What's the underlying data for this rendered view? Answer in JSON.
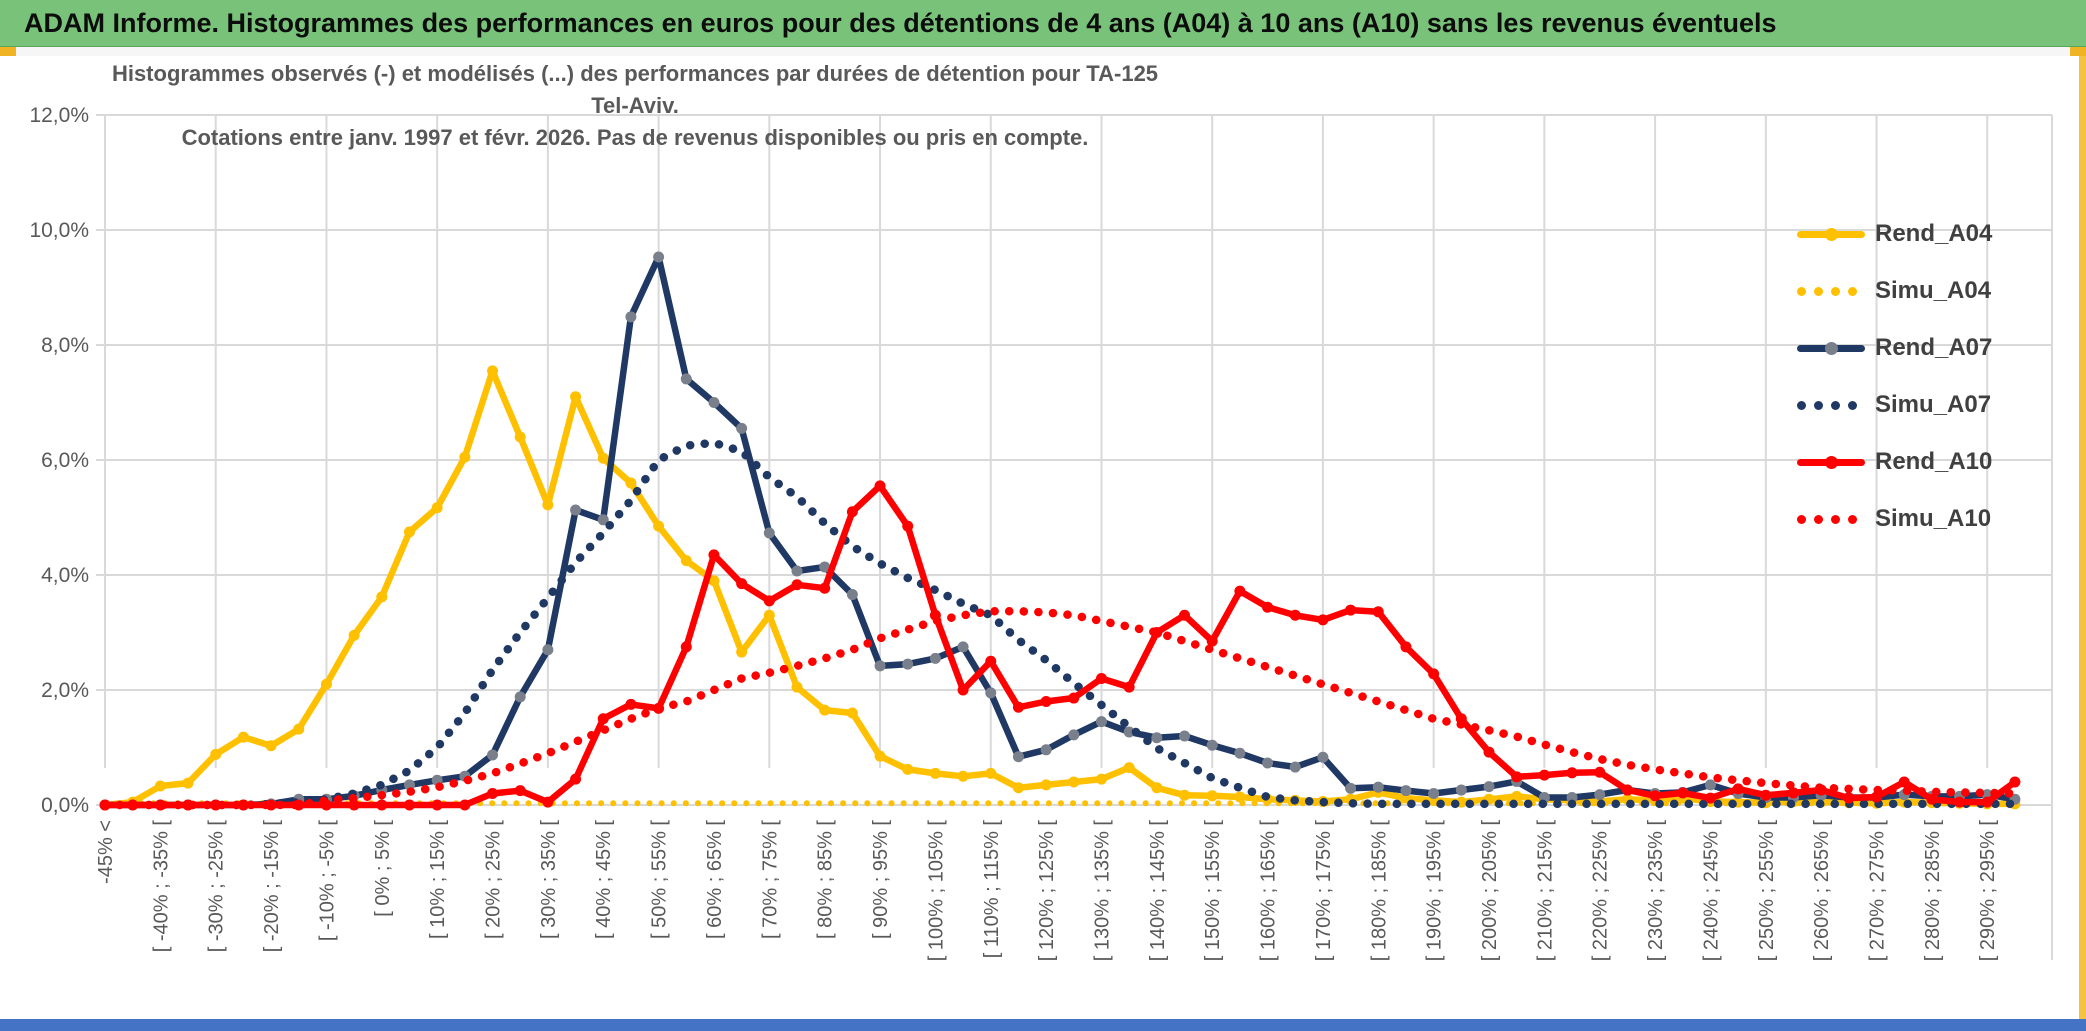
{
  "window": {
    "title": "ADAM Informe. Histogrammes des performances en euros pour des détentions de 4 ans (A04) à 10 ans (A10) sans les revenus éventuels"
  },
  "chart": {
    "subtitle_line1": "Histogrammes observés (-) et modélisés (...) des performances par durées de détention pour TA-125 Tel-Aviv.",
    "subtitle_line2": "Cotations entre janv. 1997 et févr. 2026. Pas de revenus disponibles ou pris en compte.",
    "y_ticks": [
      "12,0%",
      "10,0%",
      "8,0%",
      "6,0%",
      "4,0%",
      "2,0%",
      "0,0%"
    ],
    "colors": {
      "gold": "#FFC000",
      "navy": "#1F3864",
      "red": "#FF0000",
      "navy_marker": "#79808C",
      "grid": "#D9D9D9",
      "axis_text": "#595959",
      "title_bg": "#79C279",
      "side_strip": "#F5C242",
      "bottom_bar": "#4472C4"
    },
    "legend": [
      {
        "label": "Rend_A04",
        "color": "#FFC000",
        "marker": "#FFC000",
        "style": "solid"
      },
      {
        "label": "Simu_A04",
        "color": "#FFC000",
        "marker": "#FFC000",
        "style": "dotted"
      },
      {
        "label": "Rend_A07",
        "color": "#1F3864",
        "marker": "#79808C",
        "style": "solid"
      },
      {
        "label": "Simu_A07",
        "color": "#1F3864",
        "marker": "#1F3864",
        "style": "dotted"
      },
      {
        "label": "Rend_A10",
        "color": "#FF0000",
        "marker": "#FF0000",
        "style": "solid"
      },
      {
        "label": "Simu_A10",
        "color": "#FF0000",
        "marker": "#FF0000",
        "style": "dotted"
      }
    ]
  },
  "chart_data": {
    "type": "line",
    "title": "Histogrammes observés (-) et modélisés (...) des performances par durées de détention pour TA-125 Tel-Aviv. Cotations entre janv. 1997 et févr. 2026. Pas de revenus disponibles ou pris en compte.",
    "xlabel": "",
    "ylabel": "",
    "units": "%",
    "decimal_style": "comma",
    "ylim": [
      0,
      12
    ],
    "y_tick_step": 2,
    "grid": true,
    "legend_position": "right",
    "x_labels_shown_every": 2,
    "categories": [
      "-45% <",
      "[ -45% ; -40% [",
      "[ -40% ; -35% [",
      "[ -35% ; -30% [",
      "[ -30% ; -25% [",
      "[ -25% ; -20% [",
      "[ -20% ; -15% [",
      "[ -15% ; -10% [",
      "[ -10% ; -5% [",
      "[ -5% ; 0% [",
      "[ 0% ; 5% [",
      "[ 5% ; 10% [",
      "[ 10% ; 15% [",
      "[ 15% ; 20% [",
      "[ 20% ; 25% [",
      "[ 25% ; 30% [",
      "[ 30% ; 35% [",
      "[ 35% ; 40% [",
      "[ 40% ; 45% [",
      "[ 45% ; 50% [",
      "[ 50% ; 55% [",
      "[ 55% ; 60% [",
      "[ 60% ; 65% [",
      "[ 65% ; 70% [",
      "[ 70% ; 75% [",
      "[ 75% ; 80% [",
      "[ 80% ; 85% [",
      "[ 85% ; 90% [",
      "[ 90% ; 95% [",
      "[ 95% ; 100% [",
      "[ 100% ; 105% [",
      "[ 105% ; 110% [",
      "[ 110% ; 115% [",
      "[ 115% ; 120% [",
      "[ 120% ; 125% [",
      "[ 125% ; 130% [",
      "[ 130% ; 135% [",
      "[ 135% ; 140% [",
      "[ 140% ; 145% [",
      "[ 145% ; 150% [",
      "[ 150% ; 155% [",
      "[ 155% ; 160% [",
      "[ 160% ; 165% [",
      "[ 165% ; 170% [",
      "[ 170% ; 175% [",
      "[ 175% ; 180% [",
      "[ 180% ; 185% [",
      "[ 185% ; 190% [",
      "[ 190% ; 195% [",
      "[ 195% ; 200% [",
      "[ 200% ; 205% [",
      "[ 205% ; 210% [",
      "[ 210% ; 215% [",
      "[ 215% ; 220% [",
      "[ 220% ; 225% [",
      "[ 225% ; 230% [",
      "[ 230% ; 235% [",
      "[ 235% ; 240% [",
      "[ 240% ; 245% [",
      "[ 245% ; 250% [",
      "[ 250% ; 255% [",
      "[ 255% ; 260% [",
      "[ 260% ; 265% [",
      "[ 265% ; 270% [",
      "[ 270% ; 275% [",
      "[ 275% ; 280% [",
      "[ 280% ; 285% [",
      "[ 285% ; 290% [",
      "[ 290% ; 295% [",
      "[ 295% ; 300% ["
    ],
    "series": [
      {
        "name": "Rend_A04",
        "style": "solid",
        "color": "#FFC000",
        "marker_color": "#FFC000",
        "values": [
          0,
          0.05,
          0.33,
          0.38,
          0.88,
          1.18,
          1.03,
          1.32,
          2.1,
          2.95,
          3.62,
          4.75,
          5.17,
          6.05,
          7.55,
          6.4,
          5.22,
          7.1,
          6.03,
          5.6,
          4.85,
          4.25,
          3.9,
          2.66,
          3.3,
          2.05,
          1.65,
          1.6,
          0.85,
          0.62,
          0.55,
          0.5,
          0.55,
          0.3,
          0.35,
          0.4,
          0.45,
          0.65,
          0.3,
          0.17,
          0.16,
          0.14,
          0.1,
          0.08,
          0.06,
          0.1,
          0.22,
          0.12,
          0.08,
          0.05,
          0.1,
          0.15,
          0.1,
          0.08,
          0.06,
          0.1,
          0.08,
          0.12,
          0.06,
          0.05,
          0.04,
          0.06,
          0.05,
          0.04,
          0.03,
          0.05,
          0.04,
          0.03,
          0.02,
          0.02
        ]
      },
      {
        "name": "Simu_A04",
        "style": "dotted",
        "color": "#FFC000",
        "marker_color": "#FFC000",
        "values": [
          0.03,
          0.03,
          0.03,
          0.03,
          0.03,
          0.03,
          0.03,
          0.03,
          0.03,
          0.03,
          0.03,
          0.03,
          0.03,
          0.03,
          0.03,
          0.03,
          0.03,
          0.03,
          0.03,
          0.03,
          0.03,
          0.03,
          0.03,
          0.03,
          0.03,
          0.03,
          0.03,
          0.03,
          0.03,
          0.03,
          0.03,
          0.03,
          0.03,
          0.03,
          0.03,
          0.03,
          0.03,
          0.03,
          0.03,
          0.03,
          0.03,
          0.03,
          0.03,
          0.03,
          0.03,
          0.03,
          0.03,
          0.03,
          0.03,
          0.03,
          0.03,
          0.03,
          0.03,
          0.03,
          0.03,
          0.03,
          0.03,
          0.03,
          0.03,
          0.03,
          0.03,
          0.03,
          0.03,
          0.03,
          0.03,
          0.03,
          0.03,
          0.03,
          0.03,
          0.03
        ]
      },
      {
        "name": "Rend_A07",
        "style": "solid",
        "color": "#1F3864",
        "marker_color": "#79808C",
        "values": [
          0,
          0,
          0,
          0,
          0,
          0,
          0.02,
          0.1,
          0.1,
          0.16,
          0.26,
          0.35,
          0.43,
          0.5,
          0.87,
          1.88,
          2.7,
          5.13,
          4.96,
          8.49,
          9.53,
          7.41,
          7.0,
          6.55,
          4.73,
          4.07,
          4.14,
          3.66,
          2.42,
          2.45,
          2.55,
          2.75,
          1.95,
          0.84,
          0.96,
          1.22,
          1.45,
          1.27,
          1.17,
          1.2,
          1.04,
          0.9,
          0.73,
          0.66,
          0.83,
          0.29,
          0.31,
          0.25,
          0.2,
          0.26,
          0.32,
          0.41,
          0.13,
          0.13,
          0.18,
          0.26,
          0.2,
          0.22,
          0.35,
          0.2,
          0.13,
          0.13,
          0.17,
          0.13,
          0.13,
          0.18,
          0.15,
          0.15,
          0.18,
          0.1
        ]
      },
      {
        "name": "Simu_A07",
        "style": "dotted",
        "color": "#1F3864",
        "marker_color": "#1F3864",
        "values": [
          0,
          0,
          0,
          0,
          0,
          0,
          0.02,
          0.05,
          0.1,
          0.2,
          0.35,
          0.6,
          1.0,
          1.6,
          2.35,
          3.0,
          3.6,
          4.22,
          4.73,
          5.3,
          6.0,
          6.25,
          6.3,
          6.15,
          5.7,
          5.36,
          4.9,
          4.5,
          4.2,
          3.95,
          3.74,
          3.5,
          3.3,
          2.87,
          2.52,
          2.12,
          1.74,
          1.36,
          0.99,
          0.73,
          0.47,
          0.3,
          0.14,
          0.08,
          0.05,
          0.03,
          0.02,
          0.02,
          0.02,
          0.02,
          0.02,
          0.02,
          0.02,
          0.02,
          0.02,
          0.02,
          0.02,
          0.02,
          0.02,
          0.02,
          0.02,
          0.02,
          0.02,
          0.02,
          0.02,
          0.02,
          0.02,
          0.02,
          0.02,
          0.02
        ]
      },
      {
        "name": "Rend_A10",
        "style": "solid",
        "color": "#FF0000",
        "marker_color": "#FF0000",
        "values": [
          0,
          0,
          0,
          0,
          0,
          0,
          0,
          0,
          0,
          0,
          0,
          0,
          0,
          0,
          0.2,
          0.25,
          0.05,
          0.45,
          1.5,
          1.75,
          1.68,
          2.75,
          4.35,
          3.85,
          3.55,
          3.83,
          3.77,
          5.1,
          5.55,
          4.85,
          3.3,
          2.0,
          2.5,
          1.7,
          1.8,
          1.86,
          2.2,
          2.05,
          3.0,
          3.3,
          2.85,
          3.72,
          3.44,
          3.3,
          3.22,
          3.39,
          3.36,
          2.75,
          2.28,
          1.5,
          0.92,
          0.49,
          0.52,
          0.56,
          0.57,
          0.26,
          0.16,
          0.21,
          0.12,
          0.28,
          0.17,
          0.21,
          0.26,
          0.12,
          0.14,
          0.4,
          0.1,
          0.05,
          0.05,
          0.4
        ]
      },
      {
        "name": "Simu_A10",
        "style": "dotted",
        "color": "#FF0000",
        "marker_color": "#FF0000",
        "values": [
          0,
          0,
          0,
          0,
          0,
          0,
          0,
          0,
          0.08,
          0.12,
          0.17,
          0.23,
          0.31,
          0.42,
          0.55,
          0.72,
          0.9,
          1.1,
          1.3,
          1.5,
          1.68,
          1.8,
          2.0,
          2.2,
          2.3,
          2.42,
          2.55,
          2.7,
          2.9,
          3.05,
          3.2,
          3.3,
          3.37,
          3.37,
          3.35,
          3.3,
          3.2,
          3.1,
          3.0,
          2.85,
          2.7,
          2.55,
          2.4,
          2.25,
          2.1,
          1.95,
          1.8,
          1.65,
          1.5,
          1.4,
          1.3,
          1.19,
          1.05,
          0.92,
          0.8,
          0.7,
          0.62,
          0.55,
          0.48,
          0.43,
          0.38,
          0.34,
          0.3,
          0.28,
          0.26,
          0.25,
          0.23,
          0.22,
          0.21,
          0.2
        ]
      }
    ]
  }
}
